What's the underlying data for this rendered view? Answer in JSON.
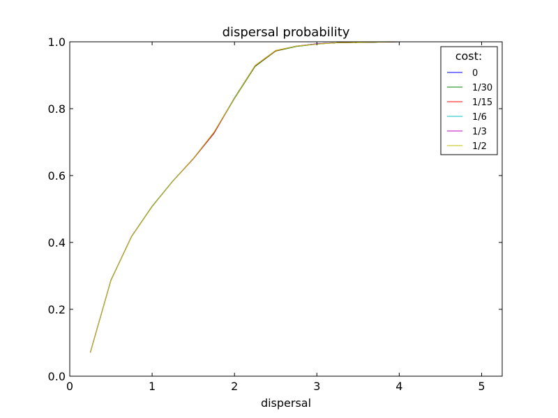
{
  "chart_data": {
    "type": "line",
    "title": "dispersal probability",
    "xlabel": "dispersal",
    "ylabel": "",
    "xlim": [
      0,
      5.25
    ],
    "ylim": [
      0,
      1.0
    ],
    "xticks": [
      "0",
      "1",
      "2",
      "3",
      "4",
      "5"
    ],
    "yticks": [
      "0.0",
      "0.2",
      "0.4",
      "0.6",
      "0.8",
      "1.0"
    ],
    "legend": {
      "title": "cost:",
      "location": "top-right"
    },
    "x": [
      0.25,
      0.5,
      0.75,
      1.0,
      1.25,
      1.5,
      1.75,
      2.0,
      2.25,
      2.5,
      2.75,
      3.0,
      3.25,
      3.5,
      3.75,
      4.0
    ],
    "series": [
      {
        "name": "0",
        "color": "#0000ff",
        "values": [
          0.071,
          0.287,
          0.418,
          0.508,
          0.583,
          0.65,
          0.726,
          0.832,
          0.928,
          0.973,
          0.987,
          0.994,
          0.997,
          0.998,
          0.999,
          1.0
        ]
      },
      {
        "name": "1/30",
        "color": "#008000",
        "values": [
          0.07,
          0.286,
          0.417,
          0.507,
          0.583,
          0.651,
          0.728,
          0.83,
          0.926,
          0.972,
          0.986,
          0.993,
          0.997,
          0.998,
          0.999,
          1.0
        ]
      },
      {
        "name": "1/15",
        "color": "#ff0000",
        "values": [
          0.071,
          0.287,
          0.418,
          0.508,
          0.583,
          0.65,
          0.726,
          0.832,
          0.928,
          0.973,
          0.987,
          0.994,
          0.997,
          0.998,
          0.999,
          1.0
        ]
      },
      {
        "name": "1/6",
        "color": "#00bfbf",
        "values": [
          0.071,
          0.288,
          0.418,
          0.509,
          0.584,
          0.651,
          0.729,
          0.833,
          0.929,
          0.974,
          0.987,
          0.994,
          0.997,
          0.998,
          0.999,
          1.0
        ]
      },
      {
        "name": "1/3",
        "color": "#bf00bf",
        "values": [
          0.071,
          0.287,
          0.418,
          0.508,
          0.583,
          0.651,
          0.729,
          0.832,
          0.929,
          0.974,
          0.987,
          0.994,
          0.997,
          0.998,
          0.999,
          1.0
        ]
      },
      {
        "name": "1/2",
        "color": "#bfbf00",
        "values": [
          0.07,
          0.287,
          0.417,
          0.508,
          0.583,
          0.651,
          0.73,
          0.831,
          0.929,
          0.974,
          0.987,
          0.993,
          0.997,
          0.998,
          0.999,
          1.0
        ]
      }
    ]
  }
}
